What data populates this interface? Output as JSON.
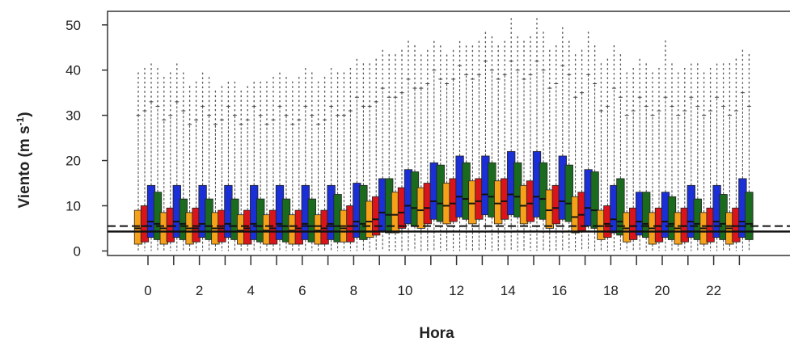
{
  "chart_data": {
    "type": "box",
    "title": "",
    "xlabel": "Hora",
    "ylabel": "Viento (m s",
    "ylabel_sup": "-1",
    "ylabel_close": ")",
    "ylim": [
      -1,
      53
    ],
    "yticks": [
      0,
      10,
      20,
      30,
      40,
      50
    ],
    "xtick_labels": [
      "0",
      "2",
      "4",
      "6",
      "8",
      "10",
      "12",
      "14",
      "16",
      "18",
      "20",
      "22"
    ],
    "hours": [
      0,
      1,
      2,
      3,
      4,
      5,
      6,
      7,
      8,
      9,
      10,
      11,
      12,
      13,
      14,
      15,
      16,
      17,
      18,
      19,
      20,
      21,
      22,
      23
    ],
    "series_colors": [
      "#f5a11a",
      "#d9141b",
      "#1b2fd6",
      "#1b6b1e"
    ],
    "series": [
      {
        "color": "#f5a11a",
        "q1": [
          1.5,
          1.5,
          1.5,
          1.5,
          1.5,
          1.5,
          1.5,
          1.5,
          2.0,
          3.0,
          4.0,
          5.0,
          6.0,
          6.0,
          6.0,
          6.0,
          5.0,
          4.0,
          2.5,
          2.0,
          1.5,
          1.5,
          1.5,
          1.5
        ],
        "median": [
          5.0,
          5.0,
          5.0,
          5.0,
          4.5,
          4.5,
          4.5,
          4.5,
          5.0,
          6.5,
          8.0,
          9.0,
          10.0,
          10.5,
          10.5,
          10.0,
          9.0,
          7.5,
          5.5,
          5.0,
          5.0,
          5.0,
          5.0,
          5.0
        ],
        "q3": [
          9.0,
          8.5,
          8.5,
          8.5,
          8.0,
          8.0,
          8.0,
          8.0,
          9.0,
          11.0,
          13.0,
          14.0,
          15.0,
          15.5,
          15.5,
          14.5,
          13.5,
          12.0,
          9.0,
          8.5,
          8.5,
          8.5,
          8.5,
          8.5
        ],
        "whisker_high": [
          30,
          29,
          28,
          28,
          28,
          28,
          28,
          28,
          30,
          32,
          34,
          36,
          37,
          38,
          38,
          38,
          36,
          34,
          31,
          30,
          30,
          30,
          30,
          30
        ],
        "outlier_max": [
          40,
          39,
          37,
          36,
          36,
          38,
          38,
          38,
          40,
          42,
          44,
          44,
          44,
          46,
          46,
          47,
          45,
          44,
          42,
          40,
          40,
          40,
          40,
          42
        ]
      },
      {
        "color": "#d9141b",
        "q1": [
          2.0,
          2.0,
          2.0,
          2.0,
          1.5,
          1.5,
          1.5,
          1.5,
          2.0,
          3.5,
          5.0,
          6.0,
          6.5,
          7.0,
          7.0,
          6.5,
          6.0,
          4.5,
          3.0,
          2.5,
          2.0,
          2.0,
          2.0,
          2.0
        ],
        "median": [
          5.5,
          5.5,
          5.0,
          5.0,
          5.0,
          5.0,
          5.0,
          5.0,
          5.5,
          7.0,
          8.5,
          9.5,
          10.5,
          11.0,
          11.0,
          10.5,
          9.5,
          8.0,
          6.0,
          5.5,
          5.5,
          5.5,
          5.5,
          5.5
        ],
        "q3": [
          10.0,
          9.5,
          9.5,
          9.0,
          9.0,
          9.0,
          9.0,
          9.0,
          10.0,
          12.0,
          14.0,
          15.0,
          16.0,
          16.0,
          16.0,
          15.5,
          14.5,
          13.0,
          10.0,
          9.5,
          9.5,
          9.5,
          9.5,
          9.5
        ],
        "whisker_high": [
          31,
          30,
          29,
          29,
          29,
          29,
          29,
          29,
          31,
          33,
          35,
          37,
          38,
          39,
          39,
          39,
          37,
          35,
          32,
          31,
          31,
          31,
          31,
          31
        ],
        "outlier_max": [
          41,
          40,
          38,
          37,
          37,
          39,
          39,
          39,
          41,
          43,
          45,
          45,
          45,
          47,
          47,
          48,
          46,
          45,
          43,
          41,
          41,
          41,
          41,
          43
        ]
      },
      {
        "color": "#1b2fd6",
        "q1": [
          3.0,
          3.0,
          3.0,
          3.0,
          2.5,
          2.5,
          2.5,
          2.5,
          3.0,
          4.5,
          6.0,
          7.0,
          7.5,
          8.0,
          8.0,
          7.5,
          7.0,
          5.5,
          4.0,
          3.5,
          3.0,
          3.0,
          3.0,
          3.0
        ],
        "median": [
          6.5,
          6.5,
          6.0,
          6.0,
          6.0,
          6.0,
          6.0,
          6.0,
          6.5,
          8.5,
          10.0,
          11.0,
          12.0,
          12.5,
          12.5,
          12.0,
          11.0,
          9.5,
          7.0,
          6.5,
          6.5,
          6.5,
          6.5,
          6.5
        ],
        "q3": [
          14.5,
          14.5,
          14.5,
          14.5,
          14.5,
          14.5,
          14.5,
          14.5,
          15.0,
          16.0,
          18.0,
          19.5,
          21.0,
          21.0,
          22.0,
          22.0,
          21.0,
          18.0,
          14.5,
          13.0,
          13.0,
          14.5,
          14.5,
          16.0
        ],
        "whisker_high": [
          33,
          33,
          32,
          32,
          32,
          32,
          32,
          32,
          34,
          36,
          38,
          40,
          41,
          42,
          42,
          42,
          41,
          39,
          36,
          34,
          34,
          34,
          34,
          35
        ],
        "outlier_max": [
          42,
          42,
          40,
          38,
          38,
          40,
          41,
          41,
          43,
          45,
          47,
          47,
          47,
          49,
          52,
          52,
          50,
          49,
          46,
          43,
          47,
          42,
          42,
          45
        ]
      },
      {
        "color": "#1b6b1e",
        "q1": [
          2.5,
          2.5,
          2.5,
          2.5,
          2.0,
          2.0,
          2.0,
          2.0,
          2.5,
          4.0,
          5.5,
          6.5,
          7.0,
          7.5,
          7.5,
          7.0,
          6.5,
          5.0,
          3.5,
          3.0,
          2.5,
          2.5,
          2.5,
          2.5
        ],
        "median": [
          6.0,
          6.0,
          5.5,
          5.5,
          5.5,
          5.5,
          5.5,
          5.5,
          6.0,
          8.0,
          9.5,
          10.5,
          11.5,
          12.0,
          12.0,
          11.5,
          10.5,
          9.0,
          6.5,
          6.0,
          6.0,
          6.0,
          6.0,
          6.0
        ],
        "q3": [
          13.0,
          11.5,
          11.5,
          11.5,
          11.5,
          11.5,
          11.5,
          12.5,
          14.5,
          16.0,
          17.5,
          19.0,
          19.5,
          19.5,
          19.5,
          19.5,
          19.0,
          17.5,
          16.0,
          13.0,
          12.0,
          11.5,
          12.5,
          13.0
        ],
        "whisker_high": [
          32,
          31,
          30,
          30,
          30,
          30,
          30,
          30,
          32,
          34,
          36,
          38,
          39,
          40,
          40,
          40,
          39,
          37,
          34,
          32,
          32,
          32,
          32,
          32
        ],
        "outlier_max": [
          41,
          40,
          39,
          38,
          38,
          39,
          40,
          40,
          42,
          44,
          46,
          46,
          46,
          48,
          48,
          49,
          47,
          46,
          44,
          42,
          42,
          42,
          42,
          44
        ]
      }
    ],
    "reference_lines": [
      {
        "style": "solid",
        "value": 4.3
      },
      {
        "style": "dashed",
        "value": 5.5
      }
    ]
  }
}
